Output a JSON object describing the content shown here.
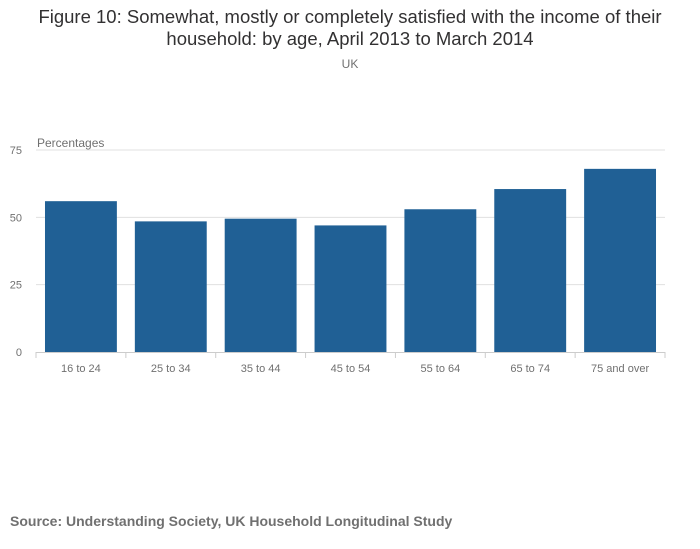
{
  "chart_data": {
    "type": "bar",
    "title": "Figure 10: Somewhat, mostly or completely satisfied with the income of their household: by age, April 2013 to March 2014",
    "subtitle": "UK",
    "ylabel": "Percentages",
    "xlabel": "",
    "categories": [
      "16 to 24",
      "25 to 34",
      "35 to 44",
      "45 to 54",
      "55 to 64",
      "65 to 74",
      "75 and over"
    ],
    "values": [
      56,
      48.5,
      49.5,
      47,
      53,
      60.5,
      68
    ],
    "ylim": [
      0,
      75
    ],
    "yticks": [
      0,
      25,
      50,
      75
    ],
    "grid": true,
    "legend": "none",
    "bar_color": "#206095",
    "grid_color": "#e0e0e0",
    "axis_color": "#cccccc"
  },
  "source": "Source: Understanding Society, UK Household Longitudinal Study"
}
